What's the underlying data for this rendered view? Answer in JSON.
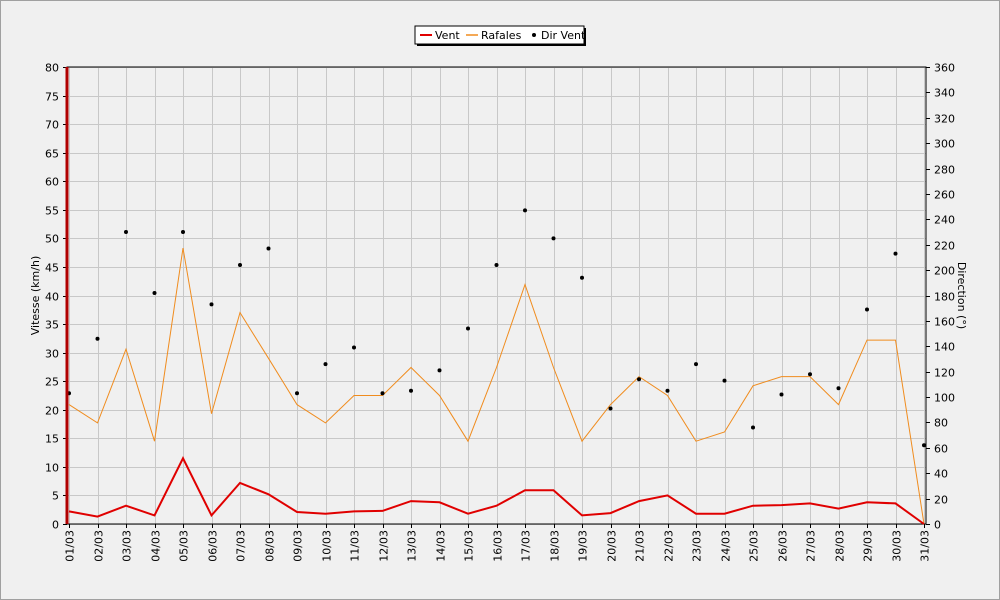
{
  "chart_data": {
    "type": "line",
    "categories": [
      "01/03",
      "02/03",
      "03/03",
      "04/03",
      "05/03",
      "06/03",
      "07/03",
      "08/03",
      "09/03",
      "10/03",
      "11/03",
      "12/03",
      "13/03",
      "14/03",
      "15/03",
      "16/03",
      "17/03",
      "18/03",
      "19/03",
      "20/03",
      "21/03",
      "22/03",
      "23/03",
      "24/03",
      "25/03",
      "26/03",
      "27/03",
      "28/03",
      "29/03",
      "30/03",
      "31/03"
    ],
    "series": [
      {
        "name": "Vent",
        "axis": "left",
        "color": "#e00000",
        "style": "line-thick",
        "values": [
          2.2,
          1.3,
          3.2,
          1.5,
          11.5,
          1.5,
          7.2,
          5.2,
          2.1,
          1.8,
          2.2,
          2.3,
          4.0,
          3.8,
          1.8,
          3.2,
          5.9,
          5.9,
          1.5,
          1.9,
          4.0,
          5.0,
          1.8,
          1.8,
          3.2,
          3.3,
          3.6,
          2.7,
          3.8,
          3.6,
          0.0
        ]
      },
      {
        "name": "Rafales",
        "axis": "left",
        "color": "#f08c1e",
        "style": "line-thin",
        "values": [
          20.9,
          17.7,
          30.6,
          14.5,
          48.3,
          19.3,
          37.0,
          29.0,
          20.9,
          17.7,
          22.5,
          22.5,
          27.4,
          22.5,
          14.5,
          27.4,
          41.9,
          27.4,
          14.5,
          20.9,
          25.8,
          22.5,
          14.5,
          16.1,
          24.2,
          25.8,
          25.8,
          20.9,
          32.2,
          32.2,
          0.0
        ]
      },
      {
        "name": "Dir Vent",
        "axis": "right",
        "color": "#000000",
        "style": "dots",
        "values": [
          103,
          146,
          230,
          182,
          230,
          173,
          204,
          217,
          103,
          126,
          139,
          103,
          105,
          121,
          154,
          204,
          247,
          225,
          194,
          91,
          114,
          105,
          126,
          113,
          76,
          102,
          118,
          107,
          169,
          213,
          62
        ]
      }
    ],
    "left_axis": {
      "label": "Vitesse (km/h)",
      "min": 0,
      "max": 80,
      "step": 5
    },
    "right_axis": {
      "label": "Direction (°)",
      "min": 0,
      "max": 360,
      "step": 20
    },
    "legend": {
      "position": "top-center"
    },
    "grid": true
  }
}
